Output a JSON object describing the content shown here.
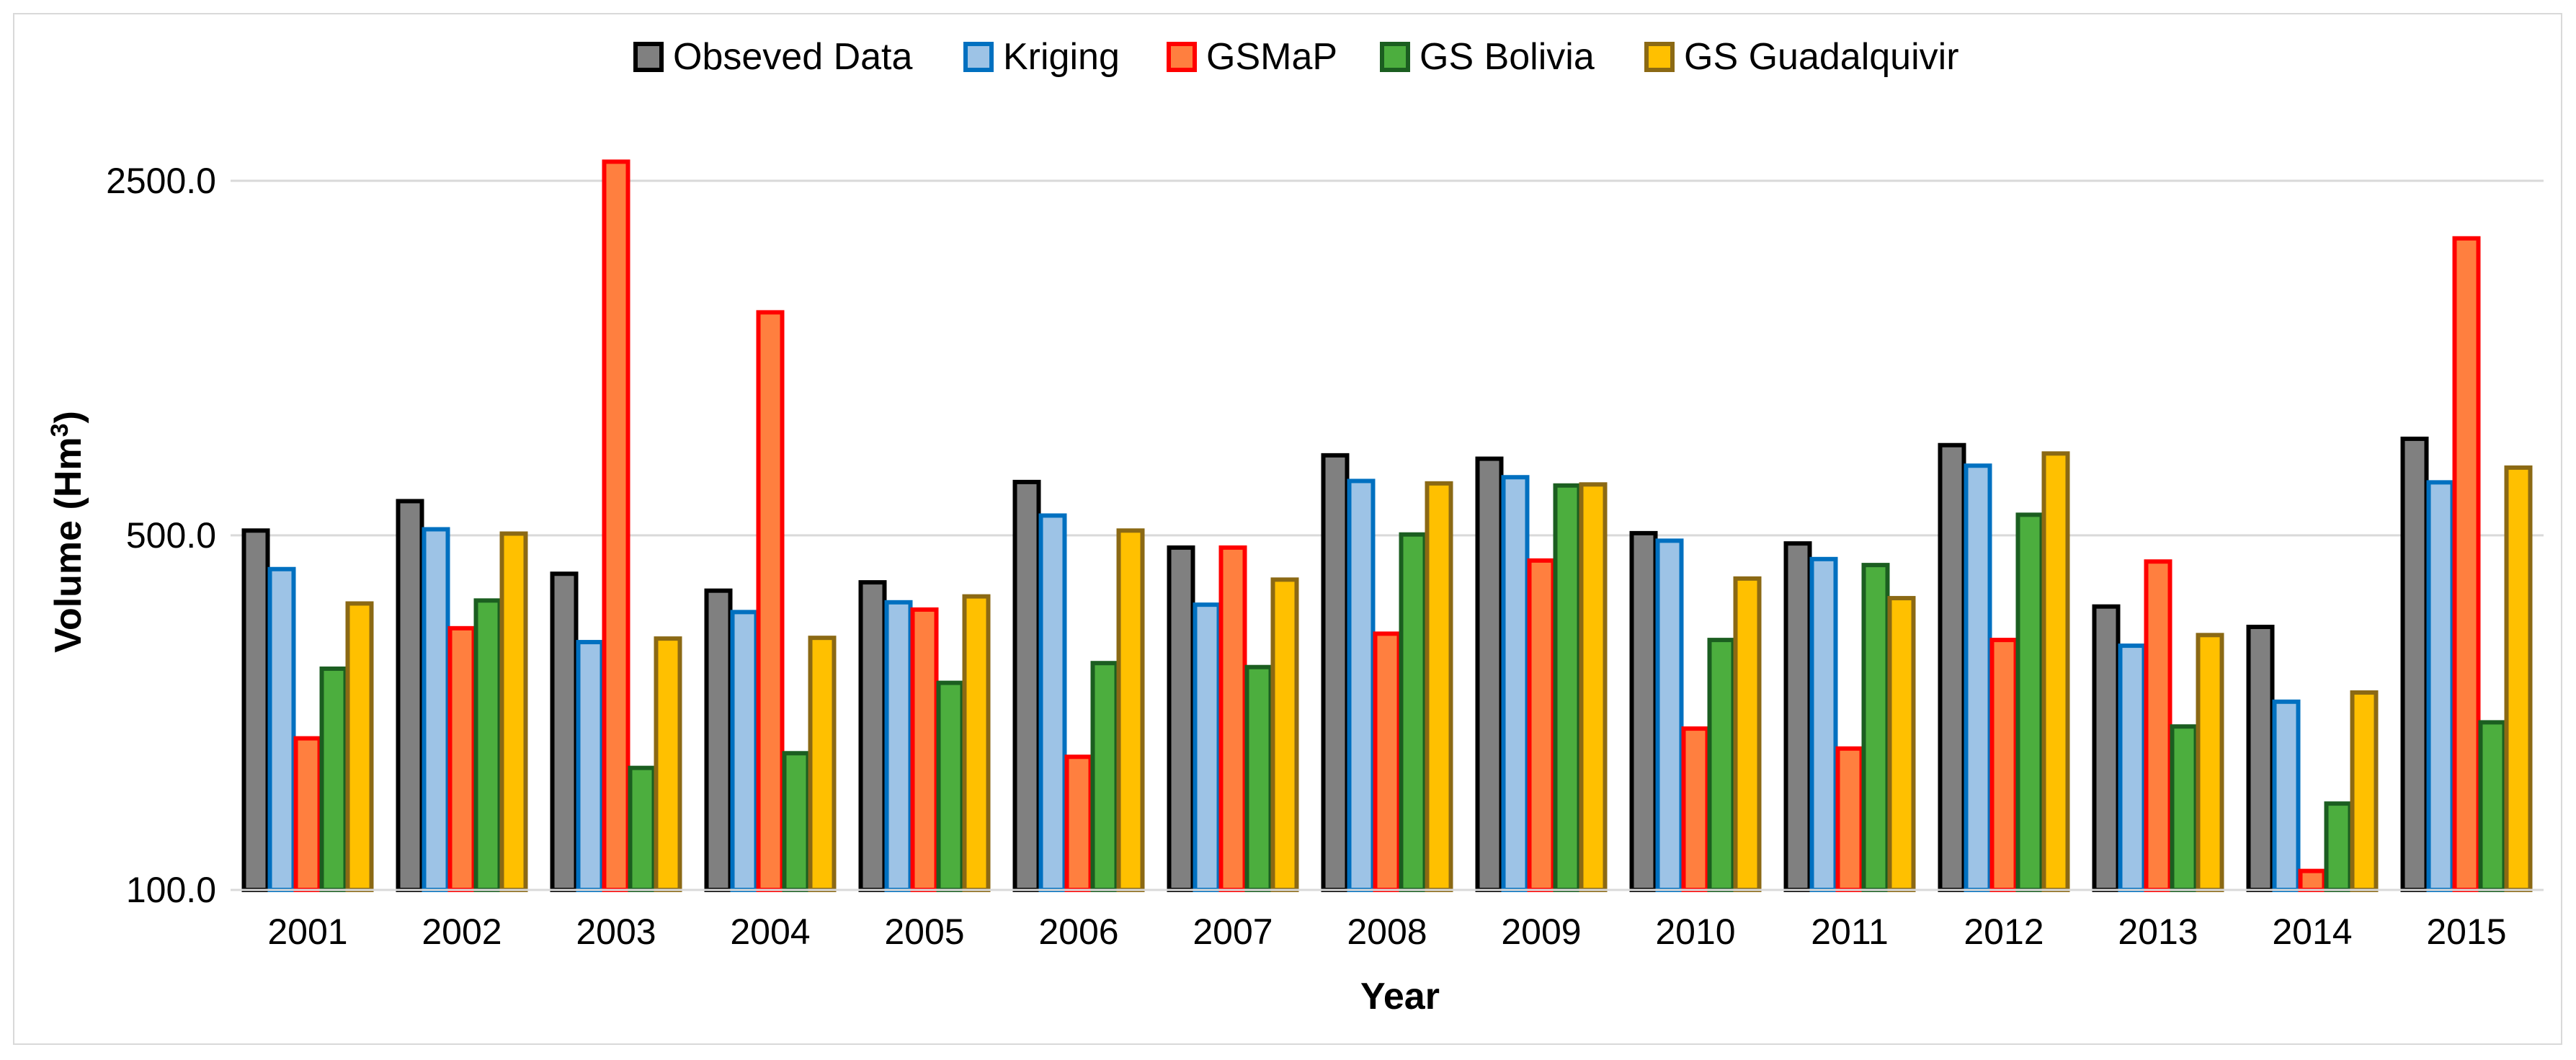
{
  "chart_data": {
    "type": "bar",
    "y_scale": "log",
    "title": "",
    "xlabel": "Year",
    "ylabel_main": "Volume (Hm",
    "ylabel_sup": "3",
    "ylabel_close": ")",
    "ylim": [
      100,
      3000
    ],
    "yticks": [
      100,
      500,
      2500
    ],
    "ytick_labels": [
      "100.0",
      "500.0",
      "2500.0"
    ],
    "grid": true,
    "legend_position": "top-center",
    "categories": [
      "2001",
      "2002",
      "2003",
      "2004",
      "2005",
      "2006",
      "2007",
      "2008",
      "2009",
      "2010",
      "2011",
      "2012",
      "2013",
      "2014",
      "2015"
    ],
    "series": [
      {
        "name": "Obseved Data",
        "fill": "#808080",
        "stroke": "#000000",
        "values": [
          511,
          584,
          420,
          389,
          404,
          637,
          473,
          719,
          708,
          505,
          482,
          753,
          362,
          330,
          775
        ]
      },
      {
        "name": "Kriging",
        "fill": "#9dc3e6",
        "stroke": "#0070c0",
        "values": [
          429,
          514,
          308,
          353,
          369,
          547,
          365,
          640,
          651,
          488,
          449,
          686,
          303,
          235,
          636
        ]
      },
      {
        "name": "GSMaP",
        "fill": "#ff7f3f",
        "stroke": "#ff0000",
        "values": [
          199,
          328,
          2726,
          1376,
          357,
          183,
          473,
          320,
          446,
          208,
          190,
          311,
          444,
          109,
          1925
        ]
      },
      {
        "name": "GS Bolivia",
        "fill": "#4cae3e",
        "stroke": "#1b5e20",
        "values": [
          273,
          372,
          174,
          186,
          256,
          280,
          275,
          502,
          627,
          311,
          437,
          549,
          210,
          148,
          214
        ]
      },
      {
        "name": "GS Guadalquivir",
        "fill": "#ffc000",
        "stroke": "#8b6914",
        "values": [
          367,
          504,
          313,
          314,
          379,
          511,
          409,
          633,
          630,
          411,
          376,
          725,
          318,
          245,
          680
        ]
      }
    ]
  }
}
